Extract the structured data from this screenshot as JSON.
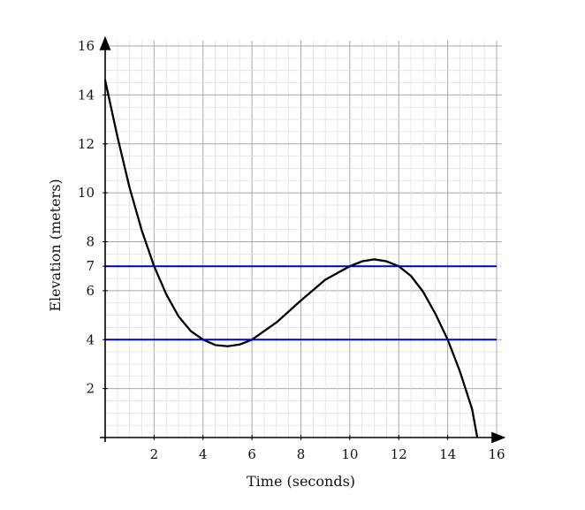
{
  "chart_data": {
    "type": "line",
    "title": "",
    "xlabel": "Time (seconds)",
    "ylabel": "Elevation (meters)",
    "xlim": [
      0,
      16
    ],
    "ylim": [
      0,
      16
    ],
    "x_ticks": [
      2,
      4,
      6,
      8,
      10,
      12,
      14,
      16
    ],
    "y_ticks": [
      2,
      4,
      6,
      7,
      8,
      10,
      12,
      14,
      16
    ],
    "x_tick_labels": [
      "2",
      "4",
      "6",
      "8",
      "10",
      "12",
      "14",
      "16"
    ],
    "y_tick_labels": [
      "2",
      "4",
      "6",
      "7",
      "8",
      "10",
      "12",
      "14",
      "16"
    ],
    "grid": true,
    "series": [
      {
        "kind": "curve",
        "color": "#000000",
        "x": [
          0,
          0.5,
          1,
          1.5,
          2,
          2.5,
          3,
          3.5,
          4,
          4.5,
          5,
          5.5,
          6,
          7,
          8,
          9,
          10,
          10.5,
          11,
          11.5,
          12,
          12.5,
          13,
          13.5,
          14,
          14.5,
          15,
          15.2
        ],
        "y": [
          14.6,
          12.3,
          10.2,
          8.45,
          7.0,
          5.85,
          4.95,
          4.35,
          4.0,
          3.78,
          3.73,
          3.8,
          4.0,
          4.7,
          5.6,
          6.45,
          7.0,
          7.2,
          7.28,
          7.2,
          7.0,
          6.6,
          5.95,
          5.05,
          4.0,
          2.7,
          1.15,
          0.05
        ]
      },
      {
        "kind": "horizontal_line",
        "color": "#0000cc",
        "x": [
          0,
          16
        ],
        "y": [
          7,
          7
        ]
      },
      {
        "kind": "horizontal_line",
        "color": "#0000cc",
        "x": [
          0,
          16
        ],
        "y": [
          4,
          4
        ]
      }
    ]
  }
}
